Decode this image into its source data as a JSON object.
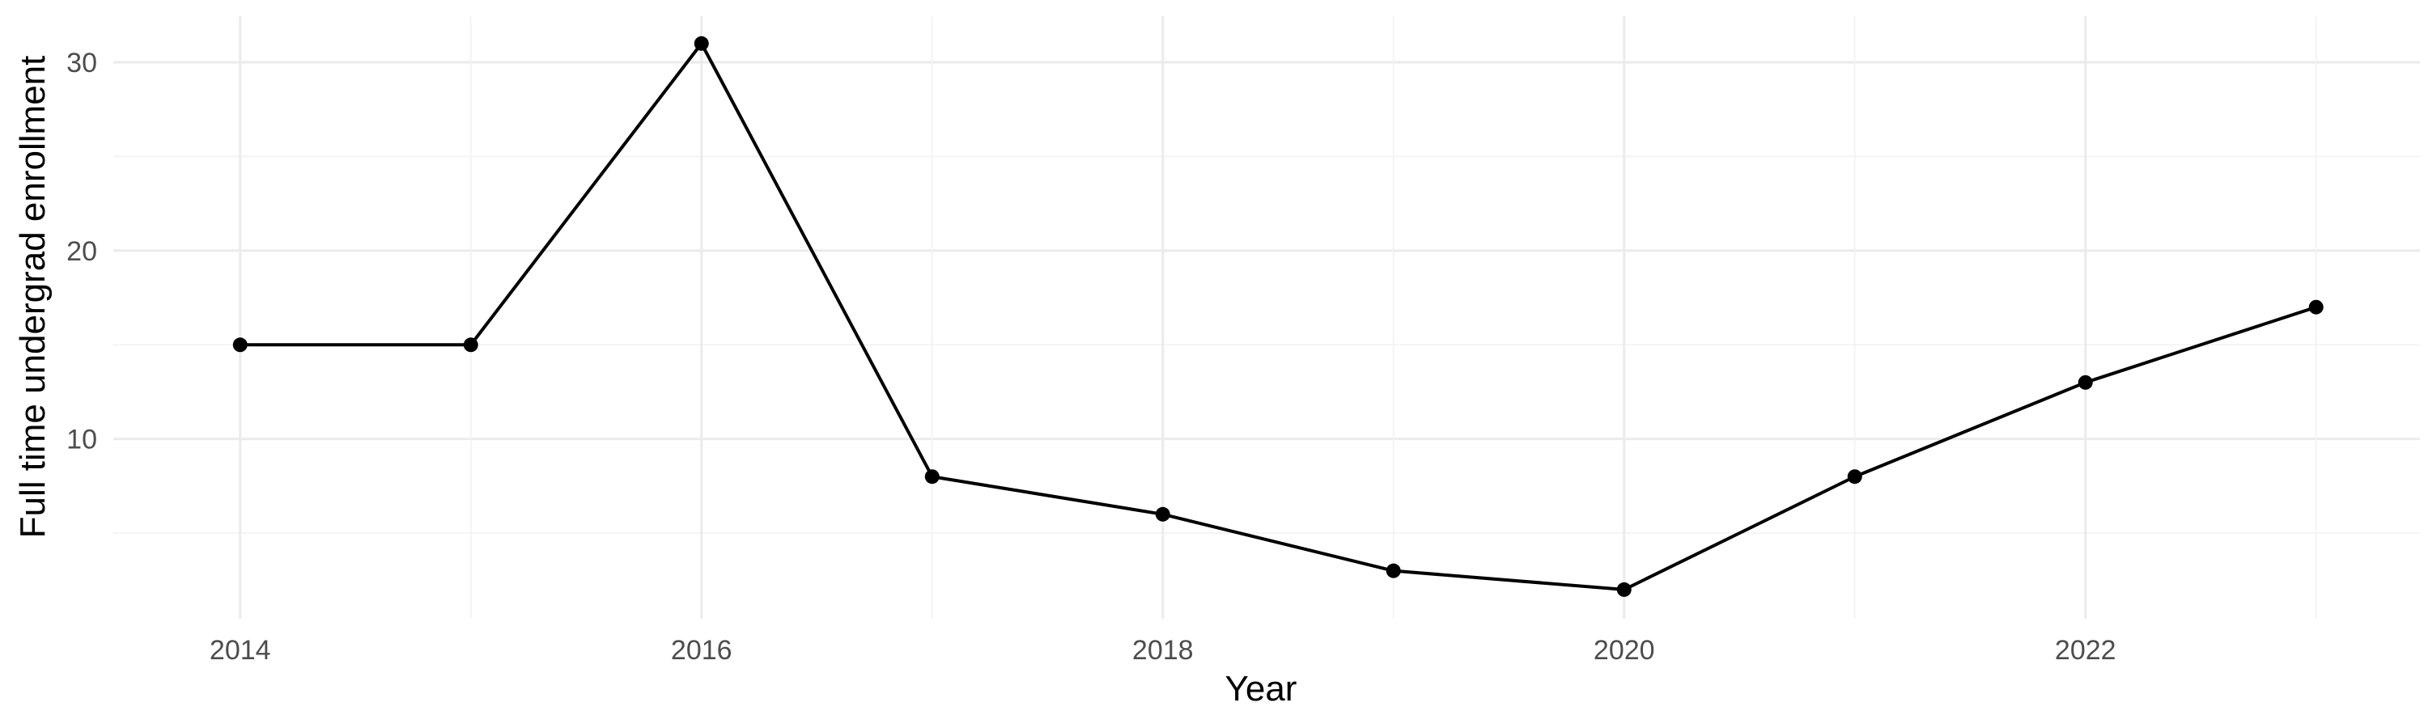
{
  "chart_data": {
    "type": "line",
    "title": "",
    "xlabel": "Year",
    "ylabel": "Full time undergrad enrollment",
    "x": [
      2014,
      2015,
      2016,
      2017,
      2018,
      2019,
      2020,
      2021,
      2022,
      2023
    ],
    "series": [
      {
        "values": [
          15,
          15,
          31,
          8,
          6,
          3,
          2,
          8,
          13,
          17
        ],
        "color": "#000000"
      }
    ],
    "xlim": [
      2013.45,
      2023.45
    ],
    "ylim": [
      0.45,
      32.45
    ],
    "x_ticks": [
      2014,
      2016,
      2018,
      2020,
      2022
    ],
    "x_tick_labels": [
      "2014",
      "2016",
      "2018",
      "2020",
      "2022"
    ],
    "y_ticks": [
      10,
      20,
      30
    ],
    "y_tick_labels": [
      "10",
      "20",
      "30"
    ],
    "grid": true,
    "markers": true,
    "legend": "none"
  }
}
